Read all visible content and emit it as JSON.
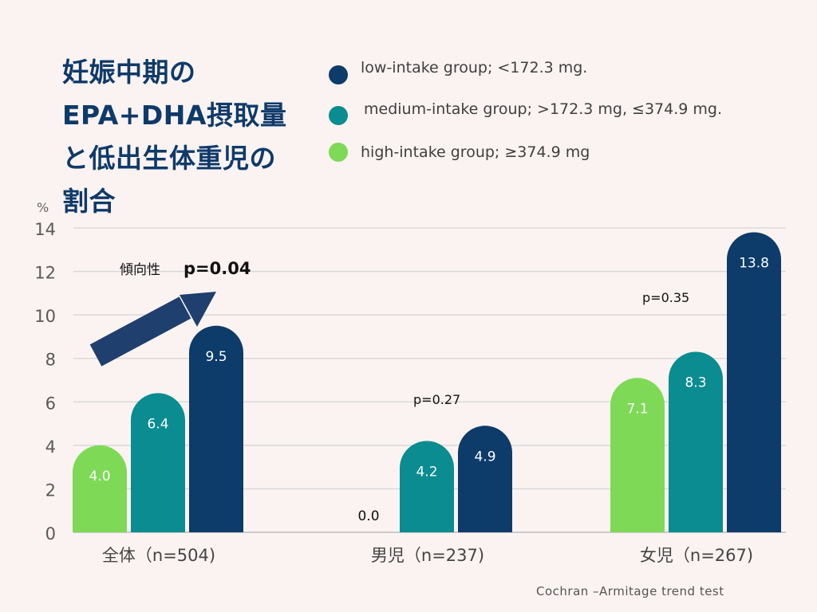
{
  "title_lines": [
    "妊娠中期の",
    "EPA+DHA摂取量",
    "と低出生体重児の",
    "割合"
  ],
  "legend": [
    {
      "label": "low-intake group; <172.3 mg.",
      "color": "#0d3b6a"
    },
    {
      "label": "medium-intake group; >172.3 mg, ≤374.9 mg.",
      "color": "#0a8c90"
    },
    {
      "label": "high-intake group; ≥374.9 mg",
      "color": "#7ed957"
    }
  ],
  "annotations": {
    "trend_label": "傾向性",
    "overall_p": "p=0.04",
    "boys_p": "p=0.27",
    "girls_p": "p=0.35"
  },
  "footnote": "Cochran –Armitage trend test",
  "chart_data": {
    "type": "bar",
    "ylabel": "%",
    "ylim": [
      0,
      14
    ],
    "yticks": [
      0,
      2,
      4,
      6,
      8,
      10,
      12,
      14
    ],
    "grid": true,
    "categories": [
      "全体（n=504)",
      "男児（n=237)",
      "女児（n=267)"
    ],
    "series": [
      {
        "name": "high-intake group; ≥374.9 mg",
        "color": "#7ed957",
        "values": [
          4.0,
          0.0,
          7.1
        ],
        "labels": [
          "4.0",
          "0.0",
          "7.1"
        ]
      },
      {
        "name": "medium-intake group; >172.3 mg, ≤374.9 mg.",
        "color": "#0a8c90",
        "values": [
          6.4,
          4.2,
          8.3
        ],
        "labels": [
          "6.4",
          "4.2",
          "8.3"
        ]
      },
      {
        "name": "low-intake group; <172.3 mg.",
        "color": "#0d3b6a",
        "values": [
          9.5,
          4.9,
          13.8
        ],
        "labels": [
          "9.5",
          "4.9",
          "13.8"
        ]
      }
    ]
  }
}
